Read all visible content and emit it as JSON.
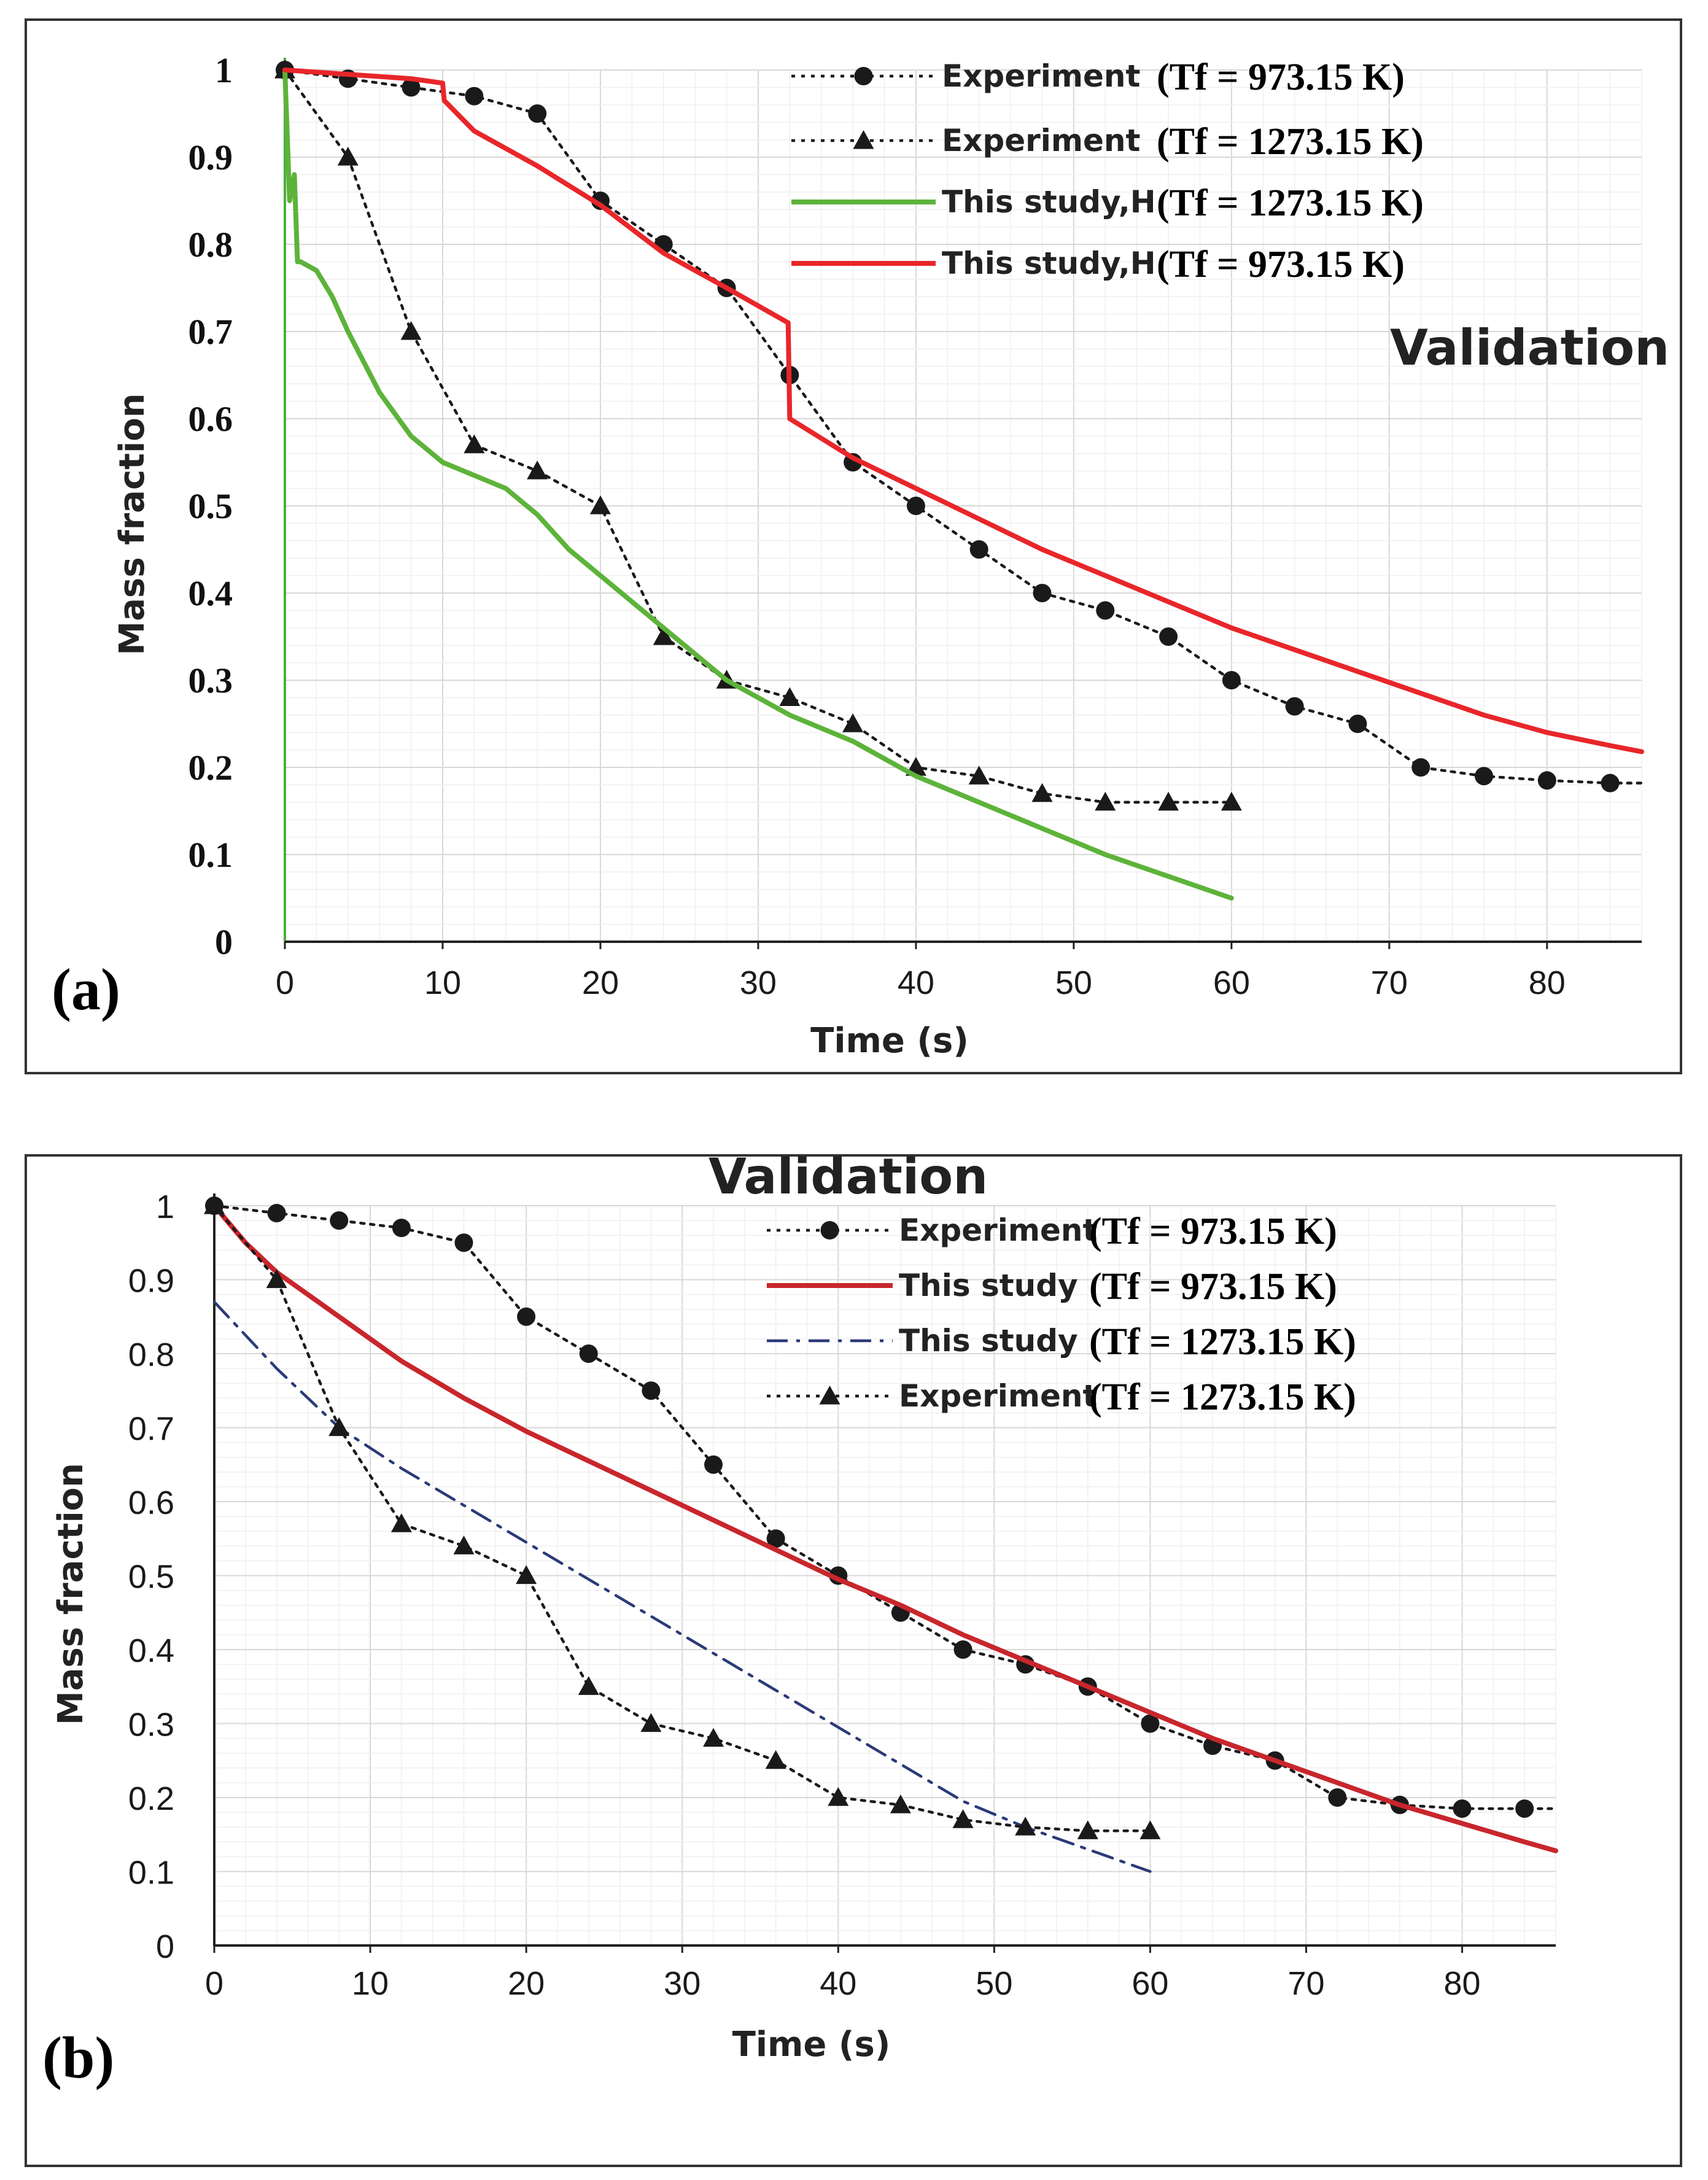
{
  "chart_data": [
    {
      "type": "line",
      "panel_label": "(a)",
      "annotation": "Validation",
      "xlabel": "Time (s)",
      "ylabel": "Mass fraction",
      "xlim": [
        0,
        86
      ],
      "ylim": [
        0,
        1
      ],
      "x_ticks": [
        "0",
        "10",
        "20",
        "30",
        "40",
        "50",
        "60",
        "70",
        "80"
      ],
      "y_ticks": [
        "0",
        "0.1",
        "0.2",
        "0.3",
        "0.4",
        "0.5",
        "0.6",
        "0.7",
        "0.8",
        "0.9",
        "1"
      ],
      "grid": true,
      "legend_position": "top-right",
      "series": [
        {
          "name": "Experiment",
          "condition": "(Tf = 973.15 K)",
          "color": "#1a1a1a",
          "style": "dotted",
          "marker": "circle",
          "x": [
            0,
            4,
            8,
            12,
            16,
            20,
            24,
            28,
            32,
            36,
            40,
            44,
            48,
            52,
            56,
            60,
            64,
            68,
            72,
            76,
            80,
            84,
            86
          ],
          "y": [
            1.0,
            0.99,
            0.98,
            0.97,
            0.95,
            0.85,
            0.8,
            0.75,
            0.65,
            0.55,
            0.5,
            0.45,
            0.4,
            0.38,
            0.35,
            0.3,
            0.27,
            0.25,
            0.2,
            0.19,
            0.185,
            0.182,
            0.182
          ],
          "marker_count": 22
        },
        {
          "name": "Experiment",
          "condition": "(Tf = 1273.15 K)",
          "color": "#1a1a1a",
          "style": "dotted",
          "marker": "triangle",
          "x": [
            0,
            4,
            8,
            12,
            16,
            20,
            24,
            28,
            32,
            36,
            40,
            44,
            48,
            52,
            56,
            60
          ],
          "y": [
            1.0,
            0.9,
            0.7,
            0.57,
            0.54,
            0.5,
            0.35,
            0.3,
            0.28,
            0.25,
            0.2,
            0.19,
            0.17,
            0.16,
            0.16,
            0.16
          ]
        },
        {
          "name": "This study,H",
          "condition": "(Tf = 1273.15 K)",
          "color": "#5db33a",
          "style": "solid",
          "marker": "none",
          "x": [
            0,
            0.3,
            0.6,
            0.8,
            1.0,
            2,
            3,
            4,
            6,
            8,
            10,
            12,
            14,
            16,
            18,
            20,
            24,
            28,
            32,
            36,
            40,
            44,
            48,
            52,
            56,
            60
          ],
          "y": [
            1.0,
            0.85,
            0.88,
            0.78,
            0.78,
            0.77,
            0.74,
            0.7,
            0.63,
            0.58,
            0.55,
            0.535,
            0.52,
            0.49,
            0.45,
            0.42,
            0.36,
            0.3,
            0.26,
            0.23,
            0.19,
            0.16,
            0.13,
            0.1,
            0.075,
            0.05
          ]
        },
        {
          "name": "This study,H",
          "condition": "(Tf = 973.15 K)",
          "color": "#e8262a",
          "style": "solid",
          "marker": "none",
          "x": [
            0,
            4,
            8,
            10,
            10.1,
            12,
            16,
            20,
            24,
            28,
            31.9,
            32,
            36,
            40,
            44,
            48,
            52,
            56,
            60,
            64,
            68,
            72,
            76,
            80,
            84,
            86
          ],
          "y": [
            1.0,
            0.995,
            0.99,
            0.985,
            0.965,
            0.93,
            0.89,
            0.845,
            0.79,
            0.75,
            0.71,
            0.6,
            0.555,
            0.52,
            0.485,
            0.45,
            0.42,
            0.39,
            0.36,
            0.335,
            0.31,
            0.285,
            0.26,
            0.24,
            0.225,
            0.218
          ]
        }
      ]
    },
    {
      "type": "line",
      "panel_label": "(b)",
      "annotation": "Validation",
      "xlabel": "Time (s)",
      "ylabel": "Mass fraction",
      "xlim": [
        0,
        86
      ],
      "ylim": [
        0,
        1
      ],
      "x_ticks": [
        "0",
        "10",
        "20",
        "30",
        "40",
        "50",
        "60",
        "70",
        "80"
      ],
      "y_ticks": [
        "0",
        "0.1",
        "0.2",
        "0.3",
        "0.4",
        "0.5",
        "0.6",
        "0.7",
        "0.8",
        "0.9",
        "1"
      ],
      "grid": true,
      "legend_position": "top-right",
      "series": [
        {
          "name": "Experiment",
          "condition": "(Tf = 973.15 K)",
          "color": "#1a1a1a",
          "style": "dotted",
          "marker": "circle",
          "x": [
            0,
            4,
            8,
            12,
            16,
            20,
            24,
            28,
            32,
            36,
            40,
            44,
            48,
            52,
            56,
            60,
            64,
            68,
            72,
            76,
            80,
            84,
            86
          ],
          "y": [
            1.0,
            0.99,
            0.98,
            0.97,
            0.95,
            0.85,
            0.8,
            0.75,
            0.65,
            0.55,
            0.5,
            0.45,
            0.4,
            0.38,
            0.35,
            0.3,
            0.27,
            0.25,
            0.2,
            0.19,
            0.185,
            0.185,
            0.185
          ],
          "marker_count": 22
        },
        {
          "name": "This study",
          "condition": "(Tf = 973.15 K)",
          "color": "#c8262c",
          "style": "solid",
          "marker": "none",
          "x": [
            0,
            2,
            4,
            8,
            12,
            16,
            20,
            24,
            28,
            32,
            36,
            40,
            44,
            48,
            52,
            56,
            60,
            64,
            68,
            72,
            76,
            80,
            84,
            86
          ],
          "y": [
            1.0,
            0.95,
            0.91,
            0.85,
            0.79,
            0.74,
            0.695,
            0.655,
            0.615,
            0.575,
            0.535,
            0.495,
            0.46,
            0.42,
            0.385,
            0.35,
            0.315,
            0.28,
            0.25,
            0.22,
            0.19,
            0.165,
            0.14,
            0.128
          ]
        },
        {
          "name": "This study",
          "condition": "(Tf = 1273.15 K)",
          "color": "#2b3a78",
          "style": "dashdot",
          "marker": "none",
          "x": [
            0,
            4,
            8,
            12,
            16,
            20,
            24,
            28,
            32,
            36,
            40,
            44,
            48,
            52,
            56,
            60
          ],
          "y": [
            0.87,
            0.78,
            0.7,
            0.645,
            0.595,
            0.545,
            0.495,
            0.445,
            0.395,
            0.345,
            0.295,
            0.245,
            0.195,
            0.16,
            0.13,
            0.1
          ]
        },
        {
          "name": "Experiment",
          "condition": "(Tf = 1273.15 K)",
          "color": "#1a1a1a",
          "style": "dotted",
          "marker": "triangle",
          "x": [
            0,
            4,
            8,
            12,
            16,
            20,
            24,
            28,
            32,
            36,
            40,
            44,
            48,
            52,
            56,
            60
          ],
          "y": [
            1.0,
            0.9,
            0.7,
            0.57,
            0.54,
            0.5,
            0.35,
            0.3,
            0.28,
            0.25,
            0.2,
            0.19,
            0.17,
            0.16,
            0.155,
            0.155
          ]
        }
      ]
    }
  ]
}
